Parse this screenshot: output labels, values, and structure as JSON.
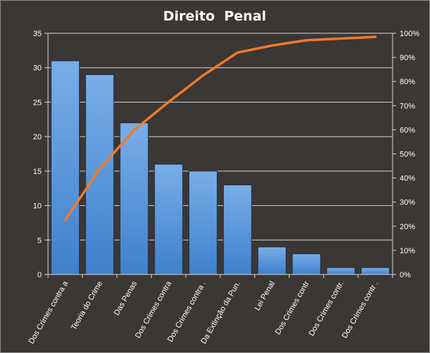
{
  "chart_data": {
    "type": "bar",
    "title": "Direito  Penal",
    "categories": [
      "Dos Crimes contra a",
      "Teoria do Crime",
      "Das Penas",
      "Dos Crimes contra",
      "Dos Crimes contra .",
      "Da Extinção da Pun.",
      "Lei Penal",
      "Dos Crimes contr",
      "Dos Crimes contr.",
      "Dos Crimes contr ."
    ],
    "series": [
      {
        "type": "bar",
        "values": [
          31,
          29,
          22,
          16,
          15,
          13,
          4,
          3,
          1,
          1
        ],
        "color": "#4f8fdb"
      },
      {
        "type": "line",
        "axis": "right",
        "values": [
          22.6,
          43.8,
          59.9,
          71.5,
          82.5,
          92.0,
          94.9,
          97.1,
          97.8,
          98.5
        ],
        "color": "#f07a2a"
      }
    ],
    "ylim": [
      0,
      35
    ],
    "yticks": [
      0,
      5,
      10,
      15,
      20,
      25,
      30,
      35
    ],
    "y2lim": [
      0,
      100
    ],
    "y2ticks": [
      "0%",
      "10%",
      "20%",
      "30%",
      "40%",
      "50%",
      "60%",
      "70%",
      "80%",
      "90%",
      "100%"
    ],
    "grid": true,
    "legend": "none"
  }
}
